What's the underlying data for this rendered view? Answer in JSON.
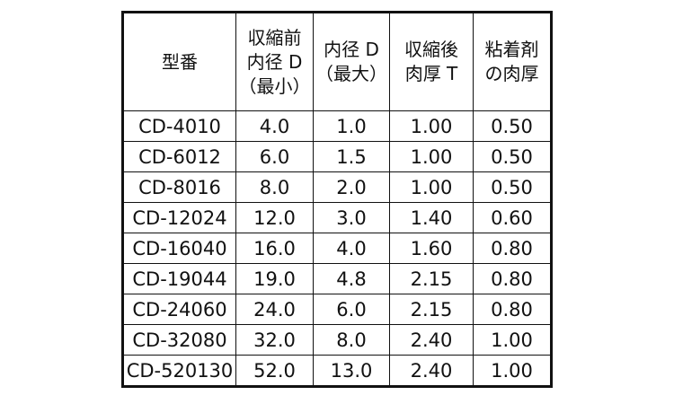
{
  "table": {
    "header": [
      [
        "型番"
      ],
      [
        "収縮前",
        "内径 D",
        "（最小）"
      ],
      [
        "内径 D",
        "（最大）"
      ],
      [
        "収縮後",
        "肉厚 T"
      ],
      [
        "粘着剤",
        "の肉厚"
      ]
    ],
    "rows": [
      [
        "CD-4010",
        "4.0",
        "1.0",
        "1.00",
        "0.50"
      ],
      [
        "CD-6012",
        "6.0",
        "1.5",
        "1.00",
        "0.50"
      ],
      [
        "CD-8016",
        "8.0",
        "2.0",
        "1.00",
        "0.50"
      ],
      [
        "CD-12024",
        "12.0",
        "3.0",
        "1.40",
        "0.60"
      ],
      [
        "CD-16040",
        "16.0",
        "4.0",
        "1.60",
        "0.80"
      ],
      [
        "CD-19044",
        "19.0",
        "4.8",
        "2.15",
        "0.80"
      ],
      [
        "CD-24060",
        "24.0",
        "6.0",
        "2.15",
        "0.80"
      ],
      [
        "CD-32080",
        "32.0",
        "8.0",
        "2.40",
        "1.00"
      ],
      [
        "CD-520130",
        "52.0",
        "13.0",
        "2.40",
        "1.00"
      ]
    ]
  }
}
